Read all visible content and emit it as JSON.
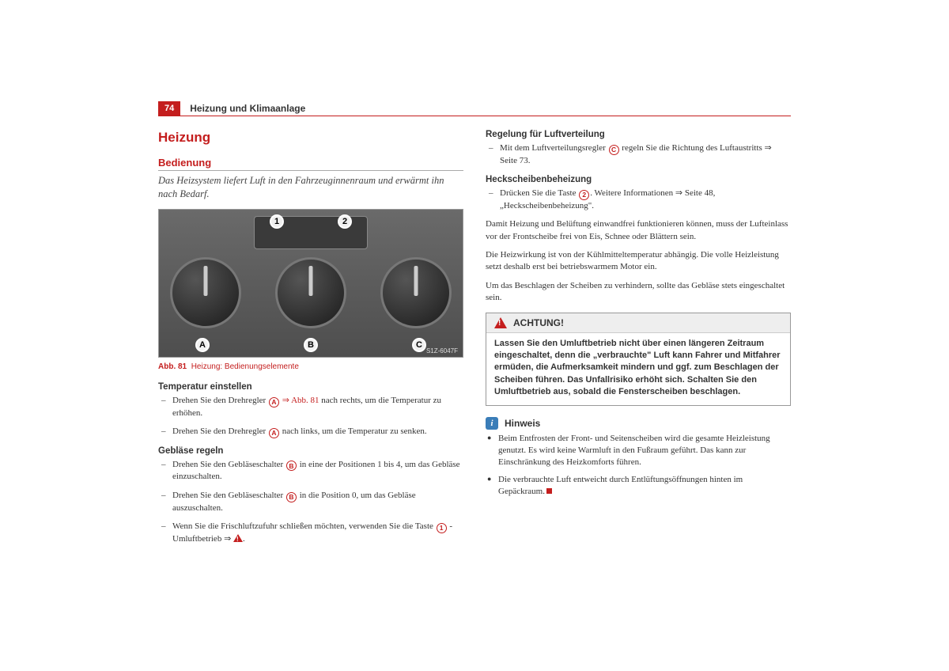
{
  "header": {
    "page_number": "74",
    "section": "Heizung und Klimaanlage"
  },
  "left": {
    "h1": "Heizung",
    "h2": "Bedienung",
    "intro": "Das Heizsystem liefert Luft in den Fahrzeuginnenraum und erwärmt ihn nach Bedarf.",
    "figure": {
      "callout_1": "1",
      "callout_2": "2",
      "callout_a": "A",
      "callout_b": "B",
      "callout_c": "C",
      "img_id": "S1Z-6047F"
    },
    "caption_prefix": "Abb. 81",
    "caption_text": "Heizung: Bedienungselemente",
    "temp": {
      "heading": "Temperatur einstellen",
      "item1a": "Drehen Sie den Drehregler ",
      "item1_ref": "A",
      "item1_link": " ⇒ Abb. 81",
      "item1b": " nach rechts, um die Temperatur zu erhöhen.",
      "item2a": "Drehen Sie den Drehregler ",
      "item2_ref": "A",
      "item2b": " nach links, um die Temperatur zu senken."
    },
    "fan": {
      "heading": "Gebläse regeln",
      "item1a": "Drehen Sie den Gebläseschalter ",
      "item1_ref": "B",
      "item1b": " in eine der Positionen 1 bis 4, um das Gebläse einzuschalten.",
      "item2a": "Drehen Sie den Gebläseschalter ",
      "item2_ref": "B",
      "item2b": " in die Position 0, um das Gebläse auszuschalten.",
      "item3a": "Wenn Sie die Frischluftzufuhr schließen möchten, verwenden Sie die Taste ",
      "item3_ref": "1",
      "item3b": " - Umluftbetrieb ⇒ "
    }
  },
  "right": {
    "dist": {
      "heading": "Regelung für Luftverteilung",
      "item1a": "Mit dem Luftverteilungsregler ",
      "item1_ref": "C",
      "item1b": " regeln Sie die Richtung des Luftaustritts ⇒ Seite 73."
    },
    "rear": {
      "heading": "Heckscheibenbeheizung",
      "item1a": "Drücken Sie die Taste ",
      "item1_ref": "2",
      "item1b": ". Weitere Informationen ⇒ Seite 48, „Heckscheibenbeheizung\"."
    },
    "para1": "Damit Heizung und Belüftung einwandfrei funktionieren können, muss der Lufteinlass vor der Frontscheibe frei von Eis, Schnee oder Blättern sein.",
    "para2": "Die Heizwirkung ist von der Kühlmitteltemperatur abhängig. Die volle Heizleistung setzt deshalb erst bei betriebswarmem Motor ein.",
    "para3": "Um das Beschlagen der Scheiben zu verhindern, sollte das Gebläse stets eingeschaltet sein.",
    "achtung": {
      "title": "ACHTUNG!",
      "body": "Lassen Sie den Umluftbetrieb nicht über einen längeren Zeitraum eingeschaltet, denn die „verbrauchte\" Luft kann Fahrer und Mitfahrer ermüden, die Aufmerksamkeit mindern und ggf. zum Beschlagen der Scheiben führen. Das Unfallrisiko erhöht sich. Schalten Sie den Umluftbetrieb aus, sobald die Fensterscheiben beschlagen."
    },
    "hinweis": {
      "title": "Hinweis",
      "b1": "Beim Entfrosten der Front- und Seitenscheiben wird die gesamte Heizleistung genutzt. Es wird keine Warmluft in den Fußraum geführt. Das kann zur Einschränkung des Heizkomforts führen.",
      "b2": "Die verbrauchte Luft entweicht durch Entlüftungsöffnungen hinten im Gepäckraum."
    }
  },
  "colors": {
    "accent": "#c41e1e",
    "text": "#333333",
    "box_border": "#999999",
    "box_head_bg": "#eeeeee",
    "info_bg": "#3a7db8"
  }
}
